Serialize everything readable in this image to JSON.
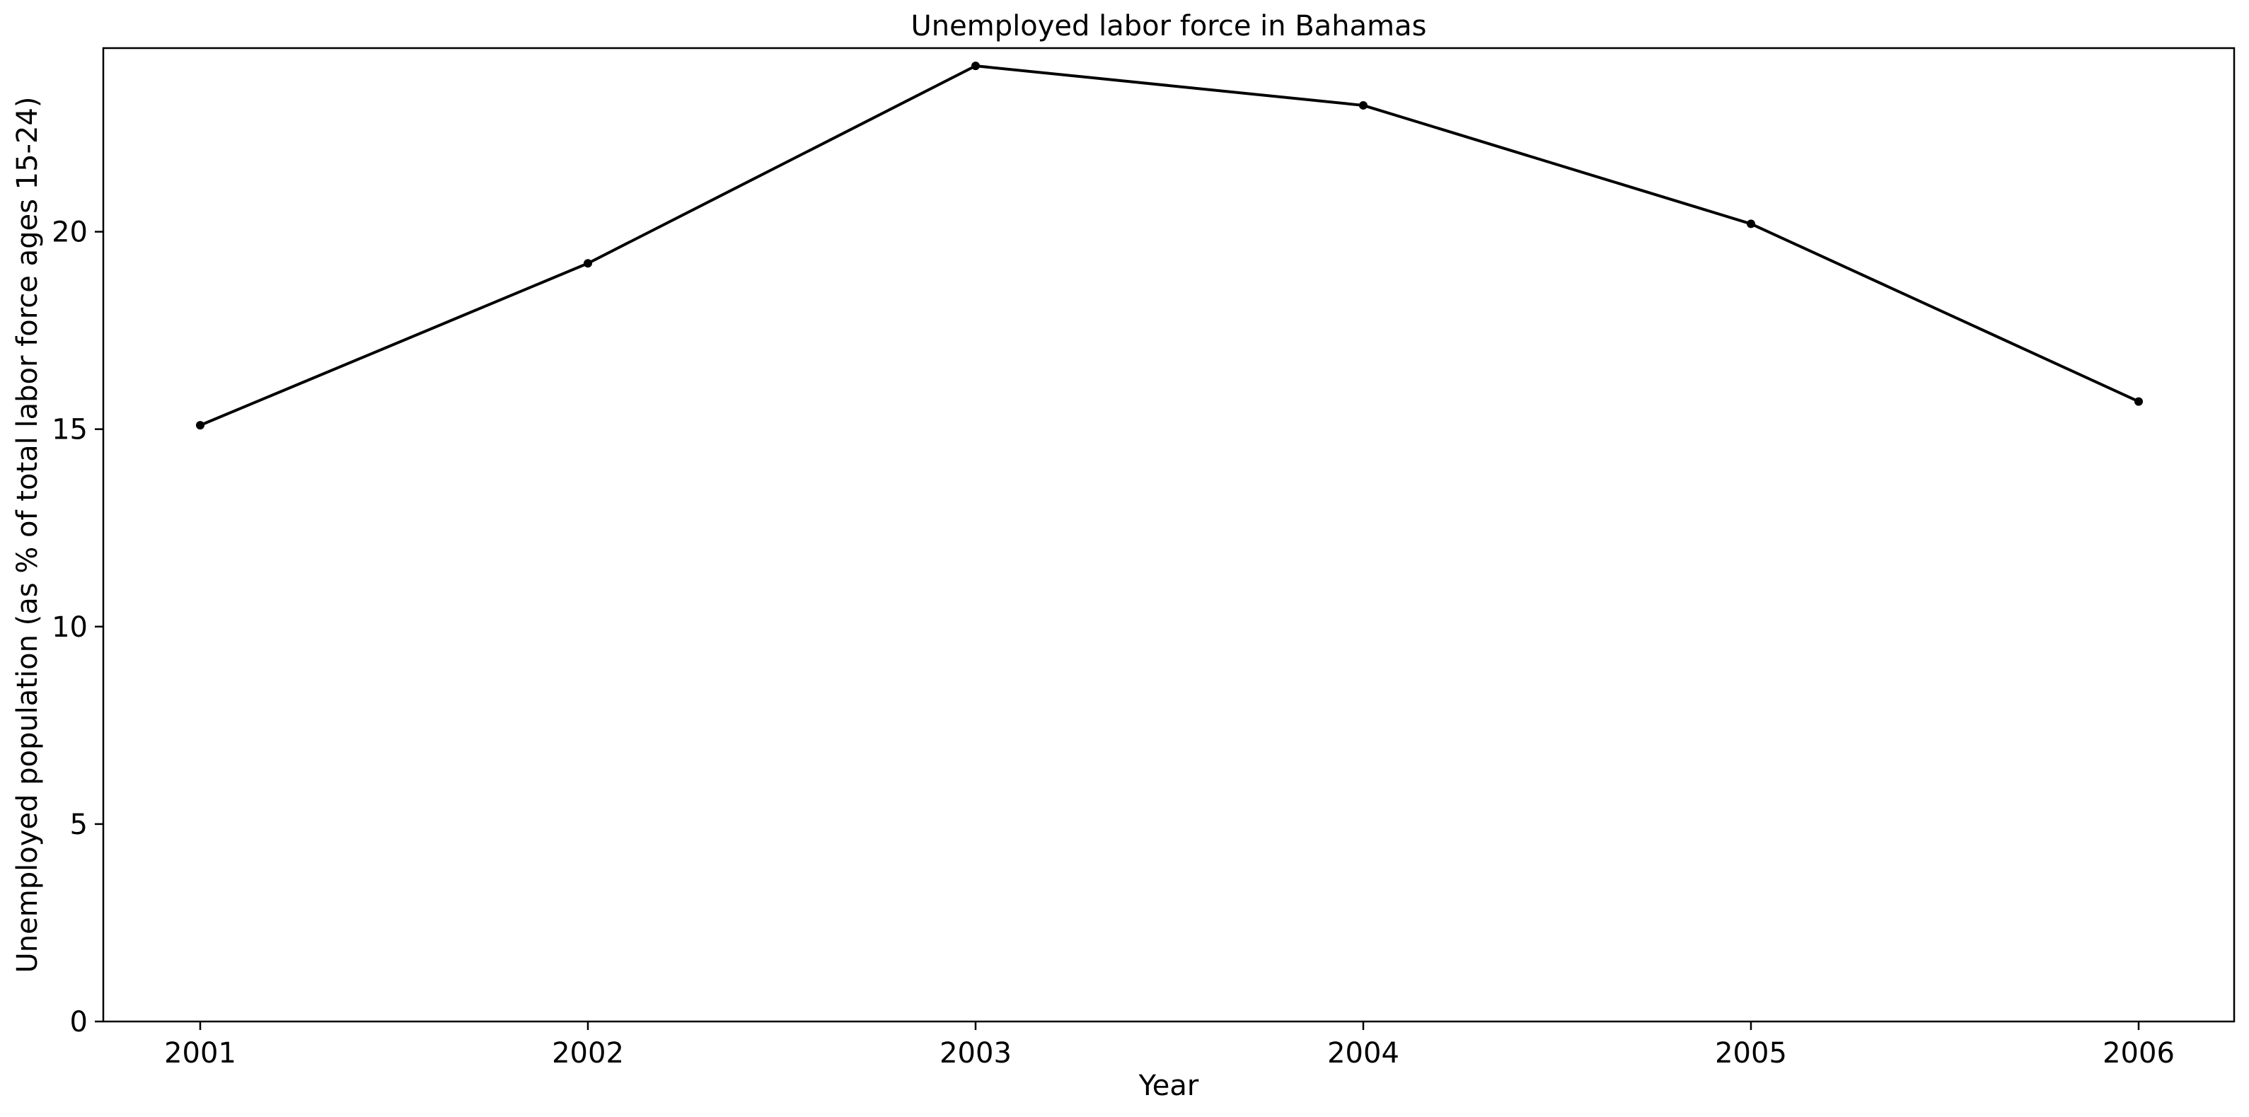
{
  "chart_data": {
    "type": "line",
    "title": "Unemployed labor force in Bahamas",
    "xlabel": "Year",
    "ylabel": "Unemployed population (as % of total labor force ages 15-24)",
    "x": [
      "2001",
      "2002",
      "2003",
      "2004",
      "2005",
      "2006"
    ],
    "series": [
      {
        "values": [
          15.1,
          19.2,
          24.2,
          23.2,
          20.2,
          15.7
        ]
      }
    ],
    "yticks": [
      0,
      5,
      10,
      15,
      20
    ],
    "ylim": [
      0,
      24.65
    ],
    "grid": false,
    "line_color": "#000000"
  }
}
